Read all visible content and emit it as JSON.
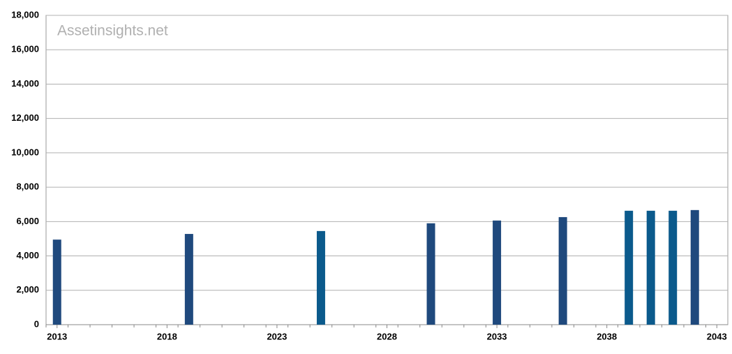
{
  "chart_data": {
    "type": "bar",
    "watermark": "Assetinsights.net",
    "x": [
      2013,
      2019,
      2025,
      2030,
      2033,
      2036,
      2039,
      2040,
      2041,
      2042
    ],
    "values": [
      4950,
      5280,
      5450,
      5900,
      6060,
      6260,
      6630,
      6630,
      6630,
      6670
    ],
    "colors": [
      "#1f497d",
      "#1f497d",
      "#0b5a8c",
      "#1f497d",
      "#1f497d",
      "#1f497d",
      "#0b5a8c",
      "#0b5a8c",
      "#0b5a8c",
      "#1f497d"
    ],
    "xlim": [
      2012.5,
      2043.5
    ],
    "xticks": [
      2013,
      2018,
      2023,
      2028,
      2033,
      2038,
      2043
    ],
    "ylim": [
      0,
      18000
    ],
    "yticks": [
      0,
      {
        "value": 2000,
        "label": "2,000"
      },
      {
        "value": 4000,
        "label": "4,000"
      },
      {
        "value": 6000,
        "label": "6,000"
      },
      {
        "value": 8000,
        "label": "8,000"
      },
      {
        "value": 10000,
        "label": "10,000"
      },
      {
        "value": 12000,
        "label": "12,000"
      },
      {
        "value": 14000,
        "label": "14,000"
      },
      {
        "value": 16000,
        "label": "16,000"
      },
      {
        "value": 18000,
        "label": "18,000"
      }
    ],
    "grid": true
  }
}
